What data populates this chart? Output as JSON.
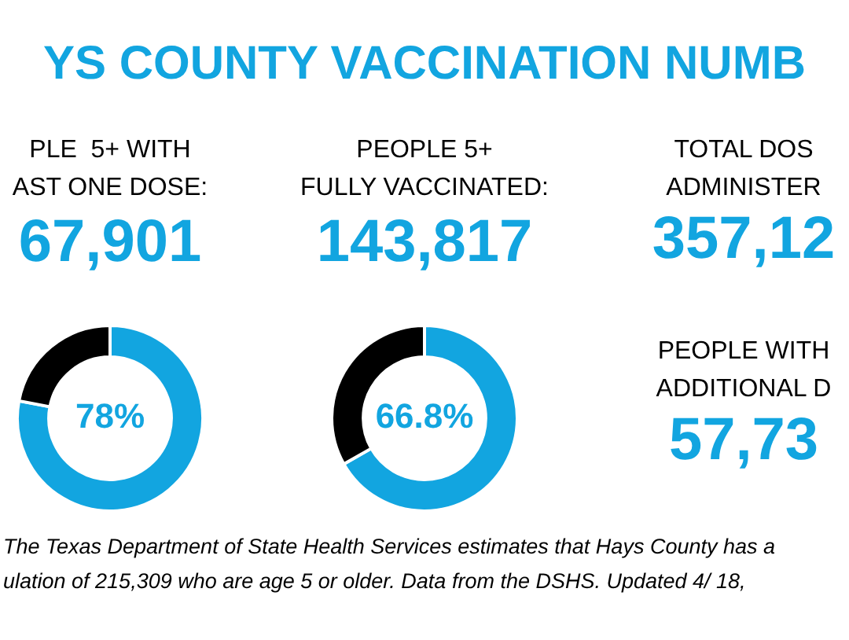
{
  "chart_data": [
    {
      "type": "other",
      "title": "YS COUNTY VACCINATION NUMB"
    },
    {
      "type": "donut",
      "title": "PLE  5+ WITH\nAST ONE DOSE:",
      "subtitle": "67,901",
      "categories": [
        null,
        null
      ],
      "values": [
        78,
        22
      ],
      "colors": [
        "#12a5e0",
        "#000000"
      ],
      "value_labels": [
        "78%",
        null
      ],
      "legend": false
    },
    {
      "type": "donut",
      "title": "PEOPLE 5+\nFULLY VACCINATED:",
      "subtitle": "143,817",
      "categories": [
        null,
        null
      ],
      "values": [
        66.8,
        33.2
      ],
      "colors": [
        "#12a5e0",
        "#000000"
      ],
      "value_labels": [
        "66.8%",
        null
      ],
      "legend": false
    },
    {
      "type": "other",
      "annotations": [
        "TOTAL DOS",
        "ADMINISTER",
        "357,12",
        "PEOPLE WITH",
        "ADDITIONAL D",
        "57,73",
        "The Texas Department of State Health Services estimates that Hays County has a",
        "ulation of 215,309 who are age 5 or older. Data from the DSHS. Updated 4/ 18,"
      ]
    }
  ]
}
